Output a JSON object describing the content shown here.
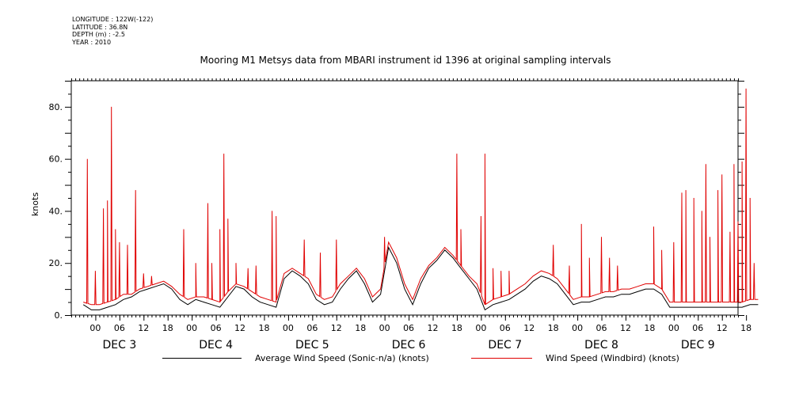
{
  "header": {
    "longitude": "LONGITUDE : 122W(-122)",
    "latitude": "LATITUDE : 36.8N",
    "depth": "DEPTH (m) : -2.5",
    "year": "YEAR : 2010"
  },
  "chart_data": {
    "type": "line",
    "title": "Mooring M1 Metsys data from MBARI instrument id 1396 at original sampling intervals",
    "xlabel": "",
    "ylabel": "knots",
    "ylim": [
      0,
      90
    ],
    "xlim_hours": [
      -6,
      160
    ],
    "y_ticks": [
      0,
      20,
      40,
      60,
      80
    ],
    "y_tick_labels": [
      "0.",
      "20.",
      "40.",
      "60.",
      "80."
    ],
    "x_hour_ticks": [
      {
        "h": 0,
        "label": "00"
      },
      {
        "h": 6,
        "label": "06"
      },
      {
        "h": 12,
        "label": "12"
      },
      {
        "h": 18,
        "label": "18"
      },
      {
        "h": 24,
        "label": "00"
      },
      {
        "h": 30,
        "label": "06"
      },
      {
        "h": 36,
        "label": "12"
      },
      {
        "h": 42,
        "label": "18"
      },
      {
        "h": 48,
        "label": "00"
      },
      {
        "h": 54,
        "label": "06"
      },
      {
        "h": 60,
        "label": "12"
      },
      {
        "h": 66,
        "label": "18"
      },
      {
        "h": 72,
        "label": "00"
      },
      {
        "h": 78,
        "label": "06"
      },
      {
        "h": 84,
        "label": "12"
      },
      {
        "h": 90,
        "label": "18"
      },
      {
        "h": 96,
        "label": "00"
      },
      {
        "h": 102,
        "label": "06"
      },
      {
        "h": 108,
        "label": "12"
      },
      {
        "h": 114,
        "label": "18"
      },
      {
        "h": 120,
        "label": "00"
      },
      {
        "h": 126,
        "label": "06"
      },
      {
        "h": 132,
        "label": "12"
      },
      {
        "h": 138,
        "label": "18"
      },
      {
        "h": 144,
        "label": "00"
      },
      {
        "h": 150,
        "label": "06"
      },
      {
        "h": 156,
        "label": "12"
      },
      {
        "h": 162,
        "label": "18"
      }
    ],
    "x_day_labels": [
      {
        "h": 6,
        "label": "DEC  3"
      },
      {
        "h": 30,
        "label": "DEC  4"
      },
      {
        "h": 54,
        "label": "DEC  5"
      },
      {
        "h": 78,
        "label": "DEC  6"
      },
      {
        "h": 102,
        "label": "DEC  7"
      },
      {
        "h": 126,
        "label": "DEC  8"
      },
      {
        "h": 150,
        "label": "DEC  9"
      }
    ],
    "grid": false,
    "legend_position": "bottom",
    "series": [
      {
        "name": "Average Wind Speed (Sonic-n/a) (knots)",
        "color": "#000000",
        "x_hours": [
          -3,
          -1,
          1,
          3,
          5,
          7,
          9,
          11,
          13,
          15,
          17,
          19,
          21,
          23,
          25,
          27,
          29,
          31,
          33,
          35,
          37,
          39,
          41,
          43,
          45,
          47,
          49,
          51,
          53,
          55,
          57,
          59,
          61,
          63,
          65,
          67,
          69,
          71,
          73,
          75,
          77,
          79,
          81,
          83,
          85,
          87,
          89,
          91,
          93,
          95,
          97,
          99,
          101,
          103,
          105,
          107,
          109,
          111,
          113,
          115,
          117,
          119,
          121,
          123,
          125,
          127,
          129,
          131,
          133,
          135,
          137,
          139,
          141,
          143,
          145,
          147,
          149,
          151,
          153,
          155,
          157,
          159,
          161,
          163,
          165
        ],
        "values": [
          4,
          2,
          2,
          3,
          4,
          6,
          7,
          9,
          10,
          11,
          12,
          10,
          6,
          4,
          6,
          5,
          4,
          3,
          7,
          11,
          10,
          7,
          5,
          4,
          3,
          14,
          17,
          15,
          12,
          6,
          4,
          5,
          10,
          14,
          17,
          12,
          5,
          8,
          26,
          20,
          10,
          4,
          12,
          18,
          21,
          25,
          22,
          18,
          14,
          10,
          2,
          4,
          5,
          6,
          8,
          10,
          13,
          15,
          14,
          12,
          8,
          4,
          5,
          5,
          6,
          7,
          7,
          8,
          8,
          9,
          10,
          10,
          8,
          3,
          3,
          3,
          3,
          3,
          3,
          3,
          3,
          3,
          3,
          4,
          4
        ]
      },
      {
        "name": "Wind Speed (Windbird) (knots)",
        "color": "#e00000",
        "x_hours": [
          -3,
          -1,
          1,
          3,
          5,
          7,
          9,
          11,
          13,
          15,
          17,
          19,
          21,
          23,
          25,
          27,
          29,
          31,
          33,
          35,
          37,
          39,
          41,
          43,
          45,
          47,
          49,
          51,
          53,
          55,
          57,
          59,
          61,
          63,
          65,
          67,
          69,
          71,
          73,
          75,
          77,
          79,
          81,
          83,
          85,
          87,
          89,
          91,
          93,
          95,
          97,
          99,
          101,
          103,
          105,
          107,
          109,
          111,
          113,
          115,
          117,
          119,
          121,
          123,
          125,
          127,
          129,
          131,
          133,
          135,
          137,
          139,
          141,
          143,
          145,
          147,
          149,
          151,
          153,
          155,
          157,
          159,
          161,
          163,
          165
        ],
        "values": [
          5,
          4,
          4,
          5,
          6,
          8,
          8,
          10,
          11,
          12,
          13,
          11,
          8,
          6,
          7,
          7,
          6,
          5,
          9,
          12,
          11,
          9,
          7,
          6,
          5,
          16,
          18,
          16,
          14,
          8,
          6,
          7,
          12,
          15,
          18,
          14,
          7,
          10,
          28,
          22,
          12,
          6,
          14,
          19,
          22,
          26,
          23,
          19,
          15,
          12,
          4,
          6,
          7,
          8,
          10,
          12,
          15,
          17,
          16,
          14,
          10,
          6,
          7,
          7,
          8,
          9,
          9,
          10,
          10,
          11,
          12,
          12,
          10,
          5,
          5,
          5,
          5,
          5,
          5,
          5,
          5,
          5,
          5,
          6,
          6
        ],
        "peaks": [
          {
            "x_hours": -2,
            "value": 60
          },
          {
            "x_hours": 0,
            "value": 17
          },
          {
            "x_hours": 2,
            "value": 41
          },
          {
            "x_hours": 3,
            "value": 44
          },
          {
            "x_hours": 4,
            "value": 80
          },
          {
            "x_hours": 5,
            "value": 33
          },
          {
            "x_hours": 6,
            "value": 28
          },
          {
            "x_hours": 8,
            "value": 27
          },
          {
            "x_hours": 10,
            "value": 48
          },
          {
            "x_hours": 12,
            "value": 16
          },
          {
            "x_hours": 14,
            "value": 15
          },
          {
            "x_hours": 22,
            "value": 33
          },
          {
            "x_hours": 25,
            "value": 20
          },
          {
            "x_hours": 28,
            "value": 43
          },
          {
            "x_hours": 29,
            "value": 20
          },
          {
            "x_hours": 31,
            "value": 33
          },
          {
            "x_hours": 32,
            "value": 62
          },
          {
            "x_hours": 33,
            "value": 37
          },
          {
            "x_hours": 35,
            "value": 20
          },
          {
            "x_hours": 38,
            "value": 18
          },
          {
            "x_hours": 40,
            "value": 19
          },
          {
            "x_hours": 44,
            "value": 40
          },
          {
            "x_hours": 45,
            "value": 38
          },
          {
            "x_hours": 52,
            "value": 29
          },
          {
            "x_hours": 56,
            "value": 24
          },
          {
            "x_hours": 60,
            "value": 29
          },
          {
            "x_hours": 72,
            "value": 30
          },
          {
            "x_hours": 90,
            "value": 62
          },
          {
            "x_hours": 91,
            "value": 33
          },
          {
            "x_hours": 96,
            "value": 38
          },
          {
            "x_hours": 97,
            "value": 62
          },
          {
            "x_hours": 99,
            "value": 18
          },
          {
            "x_hours": 101,
            "value": 17
          },
          {
            "x_hours": 103,
            "value": 17
          },
          {
            "x_hours": 114,
            "value": 27
          },
          {
            "x_hours": 118,
            "value": 19
          },
          {
            "x_hours": 121,
            "value": 35
          },
          {
            "x_hours": 123,
            "value": 22
          },
          {
            "x_hours": 126,
            "value": 30
          },
          {
            "x_hours": 128,
            "value": 22
          },
          {
            "x_hours": 130,
            "value": 19
          },
          {
            "x_hours": 139,
            "value": 34
          },
          {
            "x_hours": 141,
            "value": 25
          },
          {
            "x_hours": 144,
            "value": 28
          },
          {
            "x_hours": 146,
            "value": 47
          },
          {
            "x_hours": 147,
            "value": 48
          },
          {
            "x_hours": 149,
            "value": 45
          },
          {
            "x_hours": 151,
            "value": 40
          },
          {
            "x_hours": 152,
            "value": 58
          },
          {
            "x_hours": 153,
            "value": 30
          },
          {
            "x_hours": 155,
            "value": 48
          },
          {
            "x_hours": 156,
            "value": 54
          },
          {
            "x_hours": 158,
            "value": 32
          },
          {
            "x_hours": 159,
            "value": 58
          },
          {
            "x_hours": 160,
            "value": 36
          },
          {
            "x_hours": 161,
            "value": 59
          },
          {
            "x_hours": 162,
            "value": 87
          },
          {
            "x_hours": 163,
            "value": 45
          },
          {
            "x_hours": 164,
            "value": 20
          }
        ]
      }
    ]
  }
}
